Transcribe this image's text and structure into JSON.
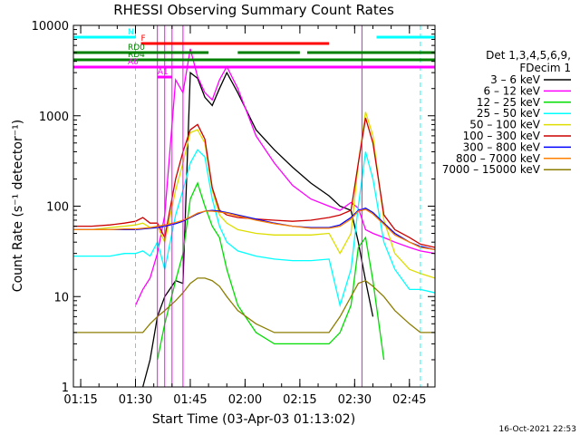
{
  "chart_data": {
    "type": "line",
    "title": "RHESSI Observing Summary Count Rates",
    "xlabel": "Start Time (03-Apr-03 01:13:02)",
    "ylabel": "Count Rate (s⁻¹ detector⁻¹)",
    "yscale": "log",
    "ylim": [
      1,
      10000
    ],
    "xlim_minutes_after_start": [
      0,
      99
    ],
    "x_ticks": [
      {
        "label": "01:15",
        "minute": 2
      },
      {
        "label": "01:30",
        "minute": 17
      },
      {
        "label": "01:45",
        "minute": 32
      },
      {
        "label": "02:00",
        "minute": 47
      },
      {
        "label": "02:15",
        "minute": 62
      },
      {
        "label": "02:30",
        "minute": 77
      },
      {
        "label": "02:45",
        "minute": 92
      }
    ],
    "y_ticks": [
      {
        "label": "1",
        "value": 1
      },
      {
        "label": "10",
        "value": 10
      },
      {
        "label": "100",
        "value": 100
      },
      {
        "label": "1000",
        "value": 1000
      },
      {
        "label": "10000",
        "value": 10000
      }
    ],
    "legend_title_lines": [
      "Det 1,3,4,5,6,9,",
      "FDecim 1"
    ],
    "legend_placement": "right",
    "x_minutes": [
      0,
      5,
      10,
      14,
      17,
      19,
      21,
      23,
      25,
      28,
      30,
      32,
      34,
      36,
      38,
      40,
      42,
      45,
      50,
      55,
      60,
      65,
      70,
      73,
      76,
      78,
      80,
      82,
      85,
      88,
      92,
      95,
      99
    ],
    "series": [
      {
        "name": "3 – 6 keV",
        "color": "#000000",
        "values": [
          null,
          null,
          null,
          null,
          null,
          1,
          2,
          6,
          10,
          15,
          14,
          3000,
          2600,
          1600,
          1300,
          2000,
          3000,
          1800,
          700,
          420,
          270,
          180,
          130,
          100,
          90,
          40,
          15,
          6,
          null,
          null,
          null,
          null,
          null
        ]
      },
      {
        "name": "6 – 12 keV",
        "color": "#ff00ff",
        "values": [
          null,
          null,
          null,
          null,
          8,
          12,
          16,
          30,
          80,
          2500,
          1800,
          5500,
          2700,
          1800,
          1500,
          2500,
          3500,
          2000,
          600,
          300,
          170,
          120,
          100,
          90,
          110,
          95,
          55,
          50,
          45,
          40,
          35,
          32,
          30
        ]
      },
      {
        "name": "12 – 25 keV",
        "color": "#00dd00",
        "values": [
          null,
          null,
          null,
          null,
          null,
          null,
          null,
          2,
          5,
          15,
          30,
          120,
          180,
          100,
          60,
          45,
          20,
          8,
          4,
          3,
          3,
          3,
          3,
          4,
          8,
          35,
          45,
          15,
          2,
          null,
          null,
          null,
          null
        ]
      },
      {
        "name": "25 – 50 keV",
        "color": "#00ffff",
        "values": [
          28,
          28,
          28,
          30,
          30,
          32,
          28,
          40,
          20,
          80,
          150,
          300,
          420,
          350,
          120,
          60,
          40,
          32,
          28,
          26,
          25,
          25,
          26,
          8,
          20,
          100,
          400,
          200,
          40,
          20,
          12,
          12,
          11
        ]
      },
      {
        "name": "50 – 100 keV",
        "color": "#dddd00",
        "values": [
          55,
          55,
          58,
          60,
          62,
          65,
          58,
          60,
          40,
          150,
          300,
          650,
          700,
          500,
          150,
          80,
          65,
          55,
          50,
          48,
          48,
          48,
          50,
          30,
          50,
          300,
          1100,
          600,
          70,
          30,
          20,
          18,
          16
        ]
      },
      {
        "name": "100 – 300 keV",
        "color": "#cc0000",
        "values": [
          60,
          60,
          62,
          65,
          68,
          75,
          65,
          65,
          45,
          200,
          400,
          700,
          800,
          550,
          160,
          90,
          80,
          75,
          72,
          70,
          68,
          70,
          75,
          80,
          90,
          300,
          950,
          500,
          80,
          55,
          45,
          38,
          35
        ]
      },
      {
        "name": "300 – 800 keV",
        "color": "#0000ff",
        "values": [
          55,
          55,
          55,
          55,
          55,
          56,
          57,
          58,
          60,
          64,
          68,
          75,
          82,
          88,
          90,
          88,
          85,
          80,
          72,
          65,
          60,
          58,
          58,
          62,
          75,
          90,
          95,
          85,
          65,
          50,
          40,
          36,
          33
        ]
      },
      {
        "name": "800 – 7000 keV",
        "color": "#ff8000",
        "values": [
          55,
          55,
          55,
          56,
          56,
          57,
          58,
          60,
          62,
          66,
          70,
          76,
          84,
          88,
          88,
          86,
          84,
          78,
          70,
          64,
          60,
          57,
          57,
          60,
          72,
          88,
          92,
          82,
          63,
          48,
          40,
          35,
          33
        ]
      },
      {
        "name": "7000 – 15000 keV",
        "color": "#8b7d00",
        "values": [
          4,
          4,
          4,
          4,
          4,
          4,
          5,
          6,
          7,
          9,
          11,
          14,
          16,
          16,
          15,
          13,
          10,
          7,
          5,
          4,
          4,
          4,
          4,
          6,
          10,
          14,
          15,
          13,
          10,
          7,
          5,
          4,
          4
        ]
      }
    ],
    "state_bars": [
      {
        "label": "N",
        "color": "#00ffff",
        "segments": [
          [
            0,
            17
          ],
          [
            83,
            99
          ]
        ]
      },
      {
        "label": "F",
        "color": "#ff0000",
        "segments": [
          [
            18.5,
            70
          ]
        ]
      },
      {
        "label": "RD0",
        "color": "#008000",
        "segments": [
          [
            0,
            37
          ],
          [
            45,
            62
          ],
          [
            64,
            99
          ]
        ]
      },
      {
        "label": "RD4",
        "color": "#008000",
        "segments": [
          [
            0,
            99
          ]
        ]
      },
      {
        "label": "A0",
        "color": "#ff00ff",
        "segments": [
          [
            0,
            99
          ]
        ]
      },
      {
        "label": "A1",
        "color": "#ff00ff",
        "segments": [
          [
            23,
            27
          ]
        ]
      }
    ],
    "vertical_markers_minutes": [
      17,
      23,
      25,
      27,
      30,
      79,
      95
    ],
    "footer_timestamp": "16-Oct-2021 22:53"
  }
}
